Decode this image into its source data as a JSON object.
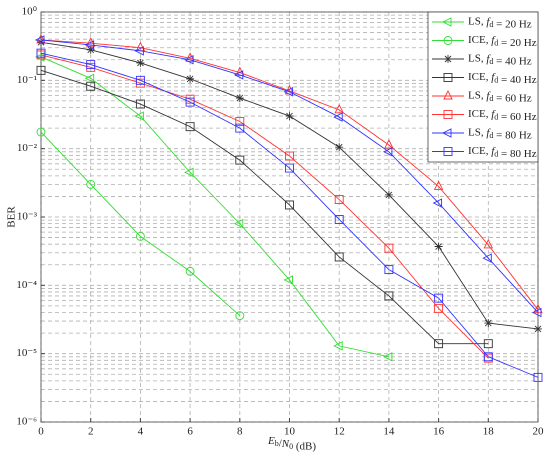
{
  "chart_data": {
    "type": "line",
    "xlabel": "Eb/N0 (dB)",
    "ylabel": "BER",
    "x": [
      0,
      2,
      4,
      6,
      8,
      10,
      12,
      14,
      16,
      18,
      20
    ],
    "xlim": [
      0,
      20
    ],
    "xticks": [
      0,
      2,
      4,
      6,
      8,
      10,
      12,
      14,
      16,
      18,
      20
    ],
    "ylim": [
      1e-06,
      1
    ],
    "yticks": [
      {
        "value": 1e-06,
        "label": "10⁻⁶"
      },
      {
        "value": 1e-05,
        "label": "10⁻⁵"
      },
      {
        "value": 0.0001,
        "label": "10⁻⁴"
      },
      {
        "value": 0.001,
        "label": "10⁻³"
      },
      {
        "value": 0.01,
        "label": "10⁻²"
      },
      {
        "value": 0.1,
        "label": "10⁻¹"
      },
      {
        "value": 1,
        "label": "10⁰"
      }
    ],
    "log_y": true,
    "grid": true,
    "legend": "upper right",
    "series": [
      {
        "name": "LS, fd = 20 Hz",
        "color": "#33dd33",
        "marker": "triangle-left",
        "values": [
          0.22,
          0.107,
          0.03,
          0.0045,
          0.0008,
          0.00012,
          1.3e-05,
          9e-06,
          null,
          null,
          null
        ]
      },
      {
        "name": "ICE, fd = 20 Hz",
        "color": "#33dd33",
        "marker": "circle",
        "values": [
          0.0175,
          0.003,
          0.00052,
          0.00016,
          3.6e-05,
          null,
          null,
          null,
          null,
          null,
          null
        ]
      },
      {
        "name": "LS, fd = 40 Hz",
        "color": "#333333",
        "marker": "star",
        "values": [
          0.36,
          0.28,
          0.18,
          0.105,
          0.055,
          0.03,
          0.0105,
          0.0021,
          0.00037,
          2.8e-05,
          2.3e-05
        ]
      },
      {
        "name": "ICE, fd = 40 Hz",
        "color": "#333333",
        "marker": "square",
        "values": [
          0.14,
          0.082,
          0.045,
          0.021,
          0.0068,
          0.0015,
          0.00026,
          7e-05,
          1.4e-05,
          1.4e-05,
          null
        ]
      },
      {
        "name": "LS, fd = 60 Hz",
        "color": "#ff3333",
        "marker": "triangle-up",
        "values": [
          0.39,
          0.35,
          0.3,
          0.21,
          0.13,
          0.07,
          0.037,
          0.0113,
          0.0028,
          0.00039,
          4.4e-05
        ]
      },
      {
        "name": "ICE, fd = 60 Hz",
        "color": "#ff3333",
        "marker": "square",
        "values": [
          0.235,
          0.155,
          0.091,
          0.053,
          0.025,
          0.0078,
          0.0018,
          0.00035,
          4.6e-05,
          8.6e-06,
          null
        ]
      },
      {
        "name": "LS, fd = 80 Hz",
        "color": "#3333ff",
        "marker": "triangle-left",
        "values": [
          0.39,
          0.33,
          0.27,
          0.2,
          0.12,
          0.068,
          0.029,
          0.009,
          0.0016,
          0.00025,
          4e-05
        ]
      },
      {
        "name": "ICE, fd = 80 Hz",
        "color": "#3333ff",
        "marker": "square",
        "values": [
          0.25,
          0.17,
          0.1,
          0.048,
          0.02,
          0.0052,
          0.00092,
          0.00017,
          6.5e-05,
          9e-06,
          4.5e-06
        ]
      }
    ]
  }
}
